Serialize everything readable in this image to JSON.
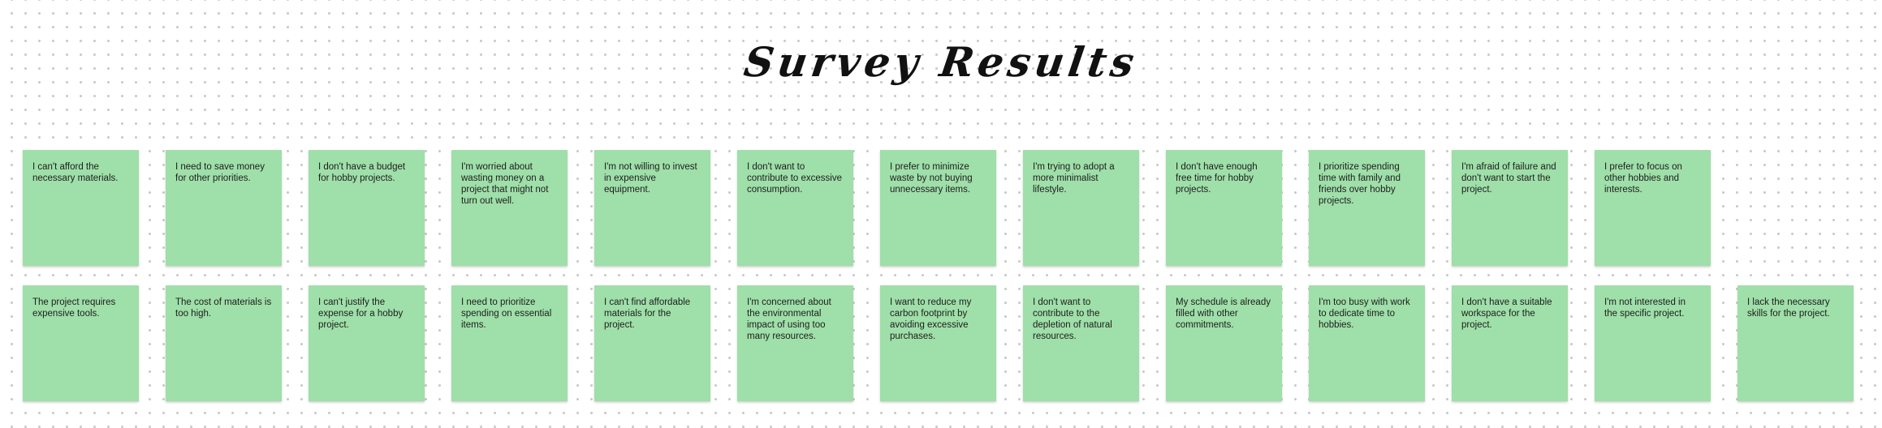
{
  "board": {
    "title": "Survey Results",
    "note_color": "#9fdfa9"
  },
  "rows": [
    {
      "notes": [
        "I can't afford the necessary materials.",
        "I need to save money for other priorities.",
        "I don't have a budget for hobby projects.",
        "I'm worried about wasting money on a project that might not turn out well.",
        "I'm not willing to invest in expensive equipment.",
        "I don't want to contribute to excessive consumption.",
        "I prefer to minimize waste by not buying unnecessary items.",
        "I'm trying to adopt a more minimalist lifestyle.",
        "I don't have enough free time for hobby projects.",
        "I prioritize spending time with family and friends over hobby projects.",
        "I'm afraid of failure and don't want to start the project.",
        "I prefer to focus on other hobbies and interests."
      ]
    },
    {
      "notes": [
        "The project requires expensive tools.",
        "The cost of materials is too high.",
        "I can't justify the expense for a hobby project.",
        "I need to prioritize spending on essential items.",
        "I can't find affordable materials for the project.",
        "I'm concerned about the environmental impact of using too many resources.",
        "I want to reduce my carbon footprint by avoiding excessive purchases.",
        "I don't want to contribute to the depletion of natural resources.",
        "My schedule is already filled with other commitments.",
        "I'm too busy with work to dedicate time to hobbies.",
        "I don't have a suitable workspace for the project.",
        "I'm not interested in the specific project.",
        "I lack the necessary skills for the project."
      ]
    }
  ]
}
